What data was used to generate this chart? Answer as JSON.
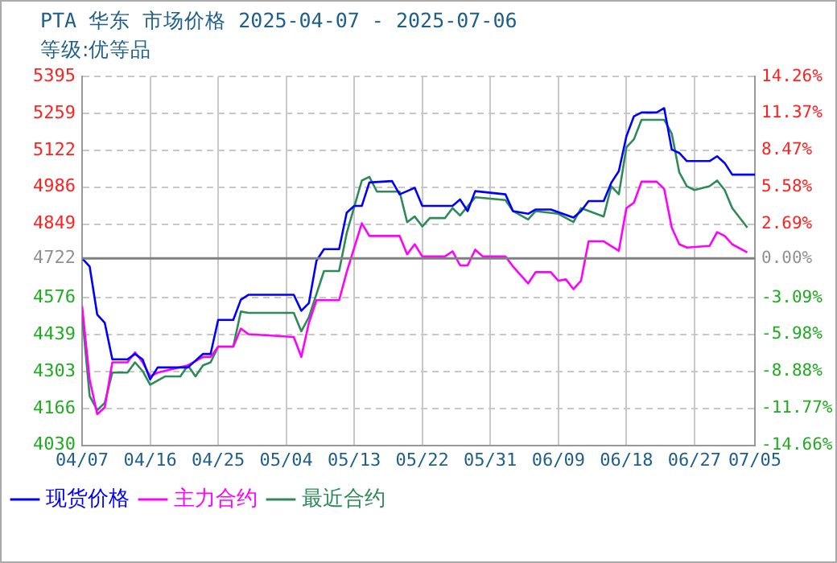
{
  "chart_data": {
    "type": "line",
    "title": "PTA 华东 市场价格 2025-04-07 - 2025-07-06",
    "subtitle": "等级:优等品",
    "xlim": [
      "2025-04-07",
      "2025-07-05"
    ],
    "xticks": [
      {
        "value": "2025-04-07",
        "label": "04/07"
      },
      {
        "value": "2025-04-16",
        "label": "04/16"
      },
      {
        "value": "2025-04-25",
        "label": "04/25"
      },
      {
        "value": "2025-05-04",
        "label": "05/04"
      },
      {
        "value": "2025-05-13",
        "label": "05/13"
      },
      {
        "value": "2025-05-22",
        "label": "05/22"
      },
      {
        "value": "2025-05-31",
        "label": "05/31"
      },
      {
        "value": "2025-06-09",
        "label": "06/09"
      },
      {
        "value": "2025-06-18",
        "label": "06/18"
      },
      {
        "value": "2025-06-27",
        "label": "06/27"
      },
      {
        "value": "2025-07-05",
        "label": "07/05"
      }
    ],
    "ylim": [
      4030,
      5395
    ],
    "yticks": [
      4030,
      4166,
      4303,
      4439,
      4576,
      4722,
      4849,
      4986,
      5122,
      5259,
      5395
    ],
    "y2lim": [
      -14.66,
      14.26
    ],
    "y2ticks": [
      {
        "value": -14.66,
        "label": "-14.66%"
      },
      {
        "value": -11.77,
        "label": "-11.77%"
      },
      {
        "value": -8.88,
        "label": "-8.88%"
      },
      {
        "value": -5.98,
        "label": "-5.98%"
      },
      {
        "value": -3.09,
        "label": "-3.09%"
      },
      {
        "value": 0,
        "label": "0.00%"
      },
      {
        "value": 2.69,
        "label": "2.69%"
      },
      {
        "value": 5.58,
        "label": "5.58%"
      },
      {
        "value": 8.47,
        "label": "8.47%"
      },
      {
        "value": 11.37,
        "label": "11.37%"
      },
      {
        "value": 14.26,
        "label": "14.26%"
      }
    ],
    "grid": true,
    "legend": "bottom",
    "marker": "none",
    "line_style": "solid",
    "ref_lines": [
      {
        "axis": "y",
        "value": 4722,
        "color": "#808080"
      }
    ],
    "series": [
      {
        "name": "现货价格",
        "color": "#0000ff",
        "x": [
          "2025-04-07",
          "2025-04-08",
          "2025-04-09",
          "2025-04-10",
          "2025-04-11",
          "2025-04-13",
          "2025-04-14",
          "2025-04-15",
          "2025-04-16",
          "2025-04-17",
          "2025-04-21",
          "2025-04-23",
          "2025-04-24",
          "2025-04-25",
          "2025-04-27",
          "2025-04-28",
          "2025-04-29",
          "2025-05-05",
          "2025-05-06",
          "2025-05-07",
          "2025-05-08",
          "2025-05-09",
          "2025-05-11",
          "2025-05-12",
          "2025-05-13",
          "2025-05-14",
          "2025-05-15",
          "2025-05-18",
          "2025-05-19",
          "2025-05-21",
          "2025-05-22",
          "2025-05-26",
          "2025-05-27",
          "2025-05-28",
          "2025-05-29",
          "2025-06-02",
          "2025-06-03",
          "2025-06-05",
          "2025-06-06",
          "2025-06-08",
          "2025-06-11",
          "2025-06-12",
          "2025-06-13",
          "2025-06-15",
          "2025-06-16",
          "2025-06-17",
          "2025-06-18",
          "2025-06-19",
          "2025-06-20",
          "2025-06-22",
          "2025-06-23",
          "2025-06-24",
          "2025-06-25",
          "2025-06-26",
          "2025-06-29",
          "2025-06-30",
          "2025-07-01",
          "2025-07-02",
          "2025-07-05"
        ],
        "values": [
          4722,
          4692,
          4514,
          4483,
          4348,
          4348,
          4368,
          4348,
          4274,
          4318,
          4318,
          4368,
          4368,
          4494,
          4494,
          4569,
          4587,
          4587,
          4528,
          4556,
          4713,
          4756,
          4756,
          4891,
          4916,
          4916,
          5003,
          5008,
          4959,
          4983,
          4916,
          4916,
          4940,
          4897,
          4971,
          4959,
          4897,
          4887,
          4903,
          4903,
          4873,
          4897,
          4934,
          4934,
          5002,
          5045,
          5174,
          5248,
          5262,
          5262,
          5278,
          5125,
          5112,
          5082,
          5082,
          5100,
          5075,
          5032,
          5032
        ]
      },
      {
        "name": "主力合约",
        "color": "#ff00ff",
        "x": [
          "2025-04-07",
          "2025-04-08",
          "2025-04-09",
          "2025-04-10",
          "2025-04-11",
          "2025-04-13",
          "2025-04-14",
          "2025-04-15",
          "2025-04-16",
          "2025-04-17",
          "2025-04-21",
          "2025-04-23",
          "2025-04-24",
          "2025-04-25",
          "2025-04-27",
          "2025-04-28",
          "2025-04-29",
          "2025-05-05",
          "2025-05-06",
          "2025-05-07",
          "2025-05-08",
          "2025-05-11",
          "2025-05-12",
          "2025-05-14",
          "2025-05-15",
          "2025-05-19",
          "2025-05-20",
          "2025-05-21",
          "2025-05-22",
          "2025-05-25",
          "2025-05-26",
          "2025-05-27",
          "2025-05-28",
          "2025-05-29",
          "2025-05-30",
          "2025-06-02",
          "2025-06-03",
          "2025-06-05",
          "2025-06-06",
          "2025-06-08",
          "2025-06-09",
          "2025-06-10",
          "2025-06-11",
          "2025-06-12",
          "2025-06-13",
          "2025-06-15",
          "2025-06-17",
          "2025-06-18",
          "2025-06-19",
          "2025-06-20",
          "2025-06-22",
          "2025-06-23",
          "2025-06-24",
          "2025-06-25",
          "2025-06-26",
          "2025-06-29",
          "2025-06-30",
          "2025-07-01",
          "2025-07-02",
          "2025-07-04"
        ],
        "values": [
          4545,
          4274,
          4145,
          4170,
          4337,
          4337,
          4374,
          4337,
          4285,
          4299,
          4326,
          4357,
          4357,
          4395,
          4395,
          4462,
          4441,
          4431,
          4357,
          4483,
          4567,
          4567,
          4671,
          4852,
          4805,
          4805,
          4737,
          4774,
          4729,
          4729,
          4748,
          4696,
          4696,
          4754,
          4729,
          4729,
          4692,
          4629,
          4671,
          4671,
          4639,
          4644,
          4608,
          4639,
          4785,
          4785,
          4750,
          4908,
          4928,
          5006,
          5006,
          4979,
          4836,
          4774,
          4762,
          4768,
          4819,
          4805,
          4774,
          4744
        ]
      },
      {
        "name": "最近合约",
        "color": "#2e8b57",
        "x": [
          "2025-04-07",
          "2025-04-08",
          "2025-04-09",
          "2025-04-10",
          "2025-04-11",
          "2025-04-13",
          "2025-04-14",
          "2025-04-15",
          "2025-04-16",
          "2025-04-18",
          "2025-04-20",
          "2025-04-21",
          "2025-04-22",
          "2025-04-23",
          "2025-04-24",
          "2025-04-25",
          "2025-04-27",
          "2025-04-28",
          "2025-04-29",
          "2025-05-05",
          "2025-05-06",
          "2025-05-07",
          "2025-05-09",
          "2025-05-11",
          "2025-05-12",
          "2025-05-14",
          "2025-05-15",
          "2025-05-16",
          "2025-05-19",
          "2025-05-20",
          "2025-05-21",
          "2025-05-22",
          "2025-05-23",
          "2025-05-25",
          "2025-05-26",
          "2025-05-27",
          "2025-05-29",
          "2025-06-02",
          "2025-06-03",
          "2025-06-05",
          "2025-06-06",
          "2025-06-09",
          "2025-06-11",
          "2025-06-12",
          "2025-06-15",
          "2025-06-16",
          "2025-06-17",
          "2025-06-18",
          "2025-06-19",
          "2025-06-20",
          "2025-06-23",
          "2025-06-24",
          "2025-06-25",
          "2025-06-26",
          "2025-06-27",
          "2025-06-29",
          "2025-06-30",
          "2025-07-01",
          "2025-07-02",
          "2025-07-04"
        ],
        "values": [
          4514,
          4212,
          4160,
          4187,
          4299,
          4299,
          4337,
          4305,
          4254,
          4285,
          4285,
          4326,
          4285,
          4326,
          4337,
          4395,
          4395,
          4525,
          4520,
          4520,
          4452,
          4504,
          4675,
          4675,
          4815,
          5010,
          5024,
          4969,
          4969,
          4856,
          4877,
          4840,
          4871,
          4871,
          4908,
          4881,
          4948,
          4938,
          4897,
          4866,
          4897,
          4887,
          4856,
          4908,
          4877,
          4989,
          4959,
          5133,
          5163,
          5235,
          5235,
          5184,
          5040,
          4989,
          4975,
          4989,
          5010,
          4975,
          4908,
          4836
        ]
      }
    ]
  }
}
